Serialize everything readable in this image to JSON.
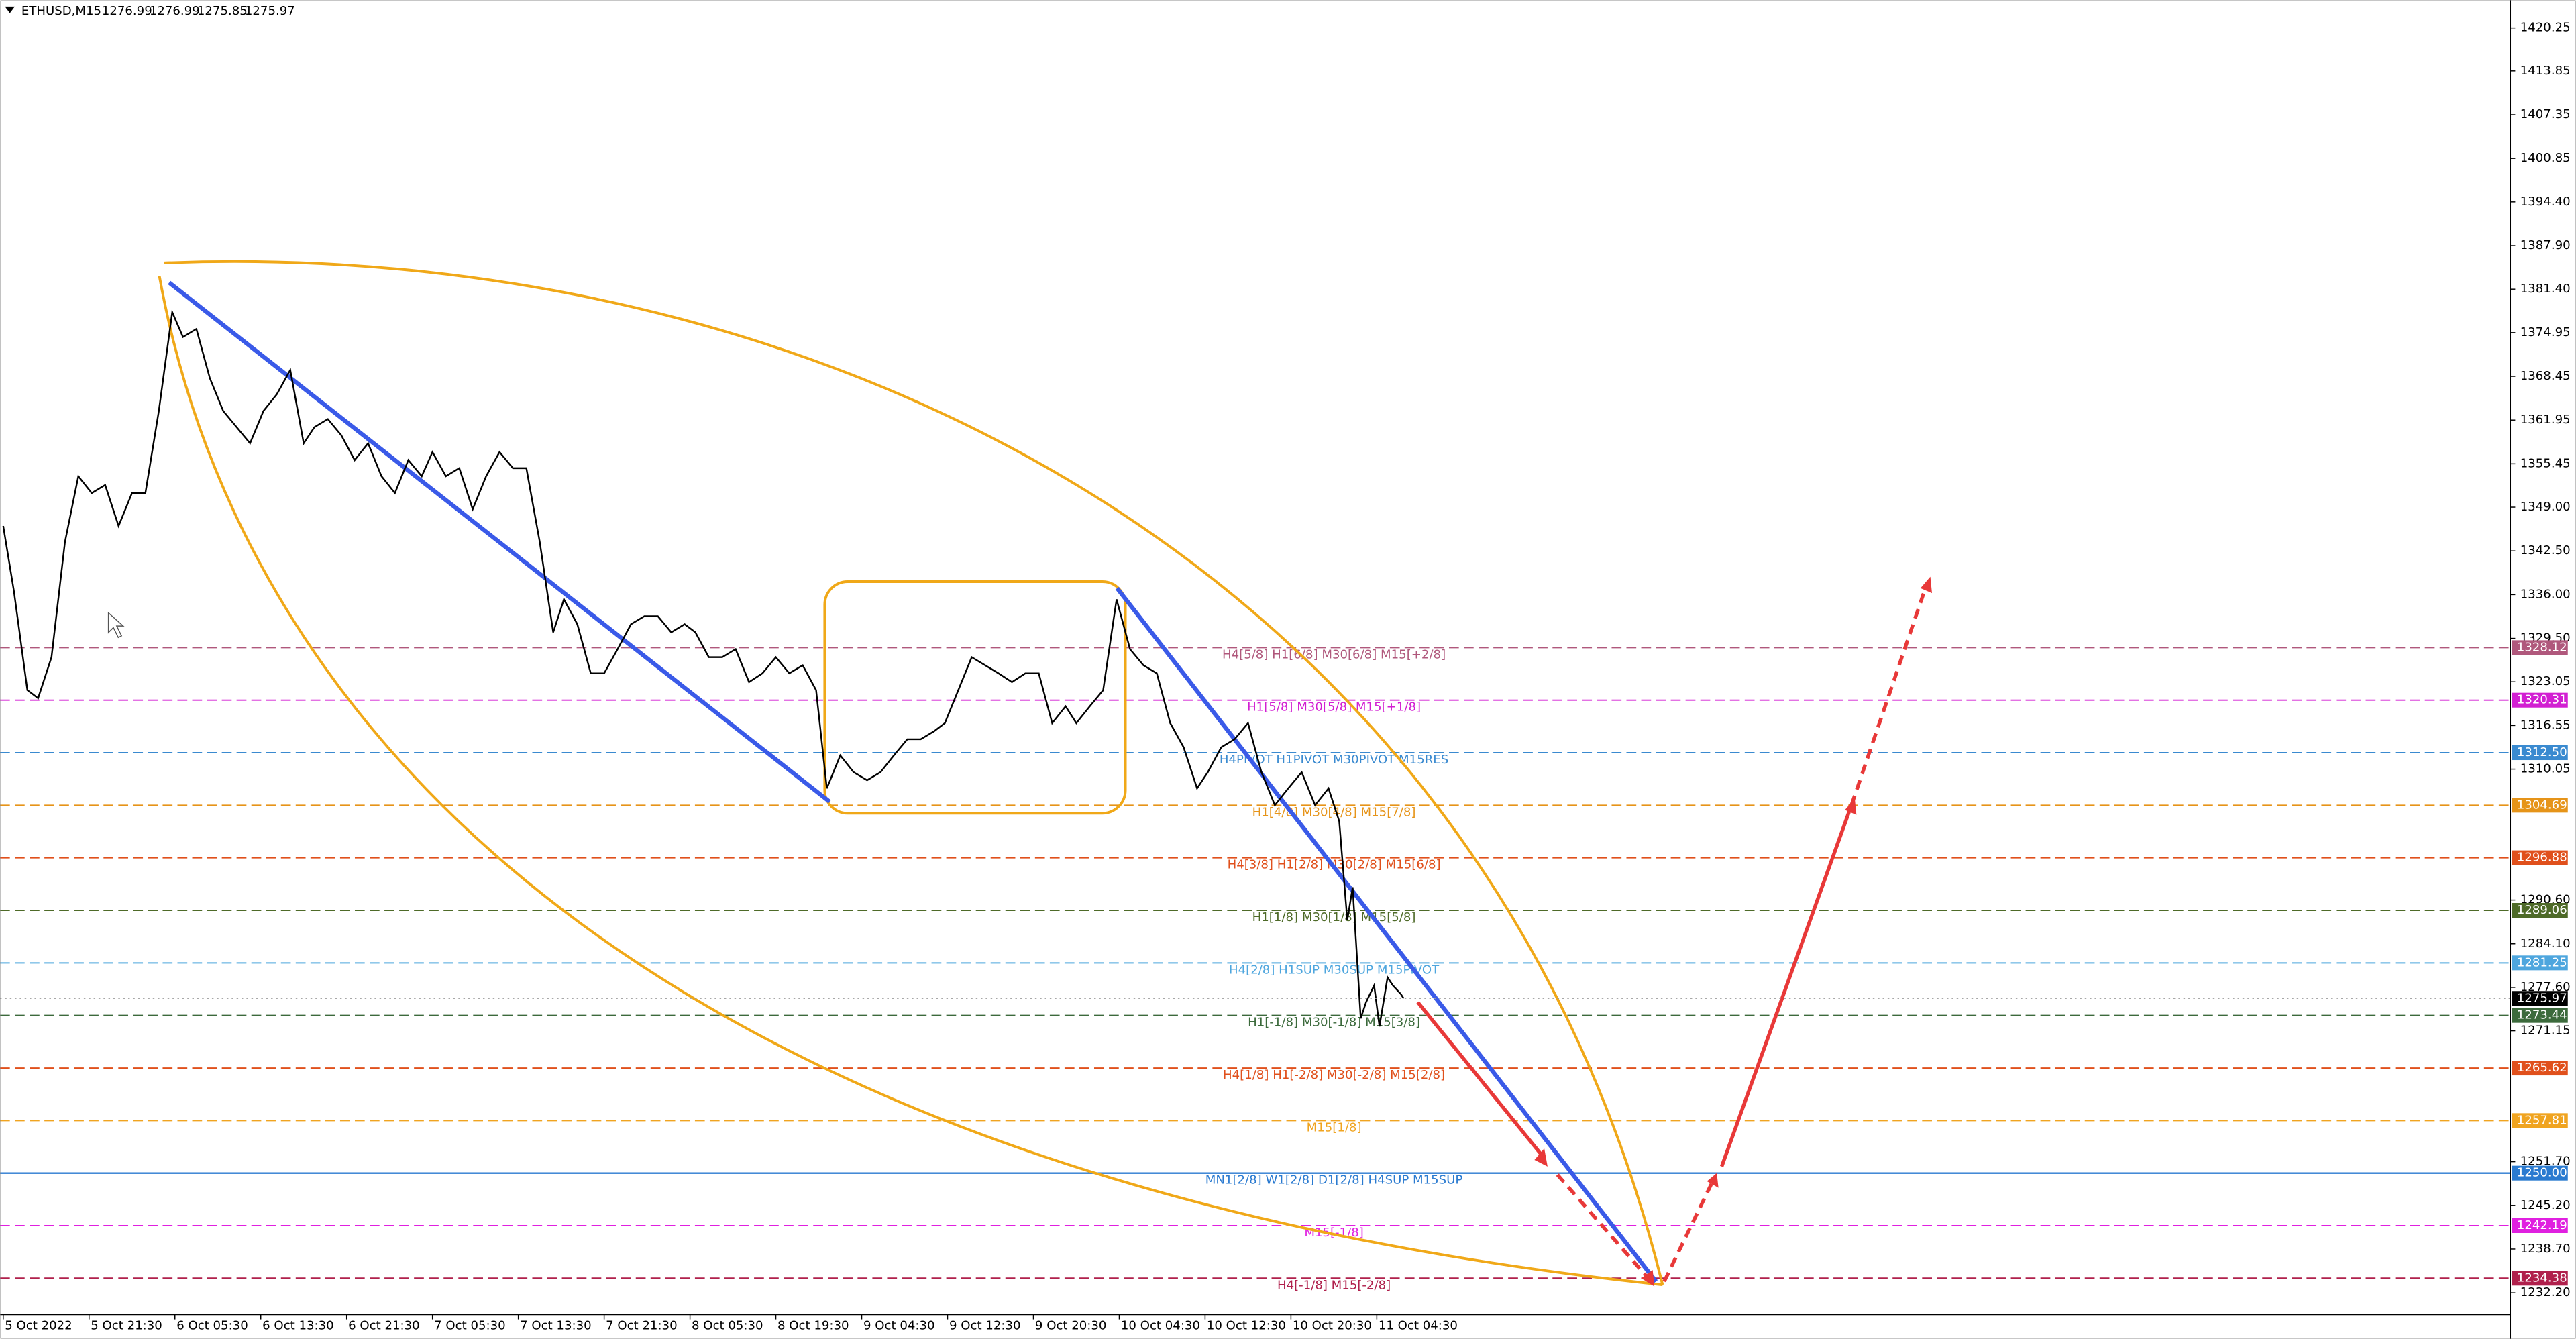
{
  "chart_data": {
    "type": "line",
    "symbol": "ETHUSD,M15",
    "ohlc": [
      1276.99,
      1276.99,
      1275.85,
      1275.97
    ],
    "color": "#000000",
    "x": [
      0,
      4,
      9,
      13,
      18,
      23,
      28,
      33,
      38,
      43,
      48,
      53,
      58,
      63,
      67,
      72,
      77,
      82,
      87,
      92,
      97,
      102,
      107,
      112,
      116,
      121,
      126,
      131,
      136,
      141,
      146,
      151,
      156,
      160,
      165,
      170,
      175,
      180,
      185,
      190,
      195,
      200,
      205,
      209,
      214,
      219,
      224,
      229,
      234,
      239,
      244,
      249,
      254,
      258,
      263,
      268,
      273,
      278,
      283,
      288,
      293,
      298,
      303,
      307,
      312,
      317,
      322,
      327,
      332,
      337,
      342,
      347,
      351,
      356,
      361,
      366,
      371,
      376,
      381,
      386,
      391,
      396,
      400,
      405,
      410,
      415,
      420,
      425,
      430,
      435,
      440,
      445,
      449,
      454,
      459,
      464,
      469,
      474,
      479,
      484,
      489,
      494,
      498,
      501,
      503,
      506,
      508,
      511,
      513,
      516,
      518,
      521,
      522
    ],
    "values": [
      1346.2,
      1336.5,
      1321.8,
      1320.6,
      1326.7,
      1343.8,
      1353.6,
      1351.1,
      1352.3,
      1346.2,
      1351.1,
      1351.1,
      1363.3,
      1378.0,
      1374.3,
      1375.5,
      1368.2,
      1363.3,
      1360.9,
      1358.5,
      1363.3,
      1365.8,
      1369.4,
      1358.5,
      1360.9,
      1362.1,
      1359.7,
      1356.0,
      1358.5,
      1353.6,
      1351.1,
      1356.0,
      1353.6,
      1357.2,
      1353.6,
      1354.8,
      1348.7,
      1353.6,
      1357.2,
      1354.8,
      1354.8,
      1343.8,
      1330.4,
      1335.3,
      1331.6,
      1324.3,
      1324.3,
      1327.9,
      1331.6,
      1332.8,
      1332.8,
      1330.4,
      1331.6,
      1330.4,
      1326.7,
      1326.7,
      1327.9,
      1323.0,
      1324.3,
      1326.7,
      1324.3,
      1325.5,
      1321.8,
      1307.2,
      1312.1,
      1309.6,
      1308.4,
      1309.6,
      1312.1,
      1314.5,
      1314.5,
      1315.7,
      1316.9,
      1321.8,
      1326.7,
      1325.5,
      1324.3,
      1323.0,
      1324.3,
      1324.3,
      1316.9,
      1319.4,
      1316.9,
      1319.4,
      1321.8,
      1335.3,
      1327.9,
      1325.5,
      1324.3,
      1316.9,
      1313.3,
      1307.2,
      1309.6,
      1313.3,
      1314.5,
      1316.9,
      1309.6,
      1304.7,
      1307.2,
      1309.6,
      1304.7,
      1307.2,
      1302.3,
      1287.6,
      1292.5,
      1273.0,
      1275.4,
      1277.9,
      1271.8,
      1279.1,
      1277.9,
      1276.6,
      1275.97
    ],
    "last_price": 1275.97,
    "xlim": [
      -1.2,
      934.5
    ],
    "ylim": [
      1229.0,
      1424.4
    ],
    "xticks": [
      {
        "value": 0,
        "label": "5 Oct 2022"
      },
      {
        "value": 32,
        "label": "5 Oct 21:30"
      },
      {
        "value": 64,
        "label": "6 Oct 05:30"
      },
      {
        "value": 96,
        "label": "6 Oct 13:30"
      },
      {
        "value": 128,
        "label": "6 Oct 21:30"
      },
      {
        "value": 160,
        "label": "7 Oct 05:30"
      },
      {
        "value": 192,
        "label": "7 Oct 13:30"
      },
      {
        "value": 224,
        "label": "7 Oct 21:30"
      },
      {
        "value": 256,
        "label": "8 Oct 05:30"
      },
      {
        "value": 288,
        "label": "8 Oct 19:30"
      },
      {
        "value": 320,
        "label": "9 Oct 04:30"
      },
      {
        "value": 352,
        "label": "9 Oct 12:30"
      },
      {
        "value": 384,
        "label": "9 Oct 20:30"
      },
      {
        "value": 416,
        "label": "10 Oct 04:30"
      },
      {
        "value": 448,
        "label": "10 Oct 12:30"
      },
      {
        "value": 480,
        "label": "10 Oct 20:30"
      },
      {
        "value": 512,
        "label": "11 Oct 04:30"
      }
    ],
    "yticks": [
      1420.25,
      1413.85,
      1407.35,
      1400.85,
      {
        "value": 1394.4,
        "label": "1394.40"
      },
      {
        "value": 1387.9,
        "label": "1387.90"
      },
      {
        "value": 1381.4,
        "label": "1381.40"
      },
      1374.95,
      1368.45,
      1361.95,
      1355.45,
      {
        "value": 1349,
        "label": "1349.00"
      },
      {
        "value": 1342.5,
        "label": "1342.50"
      },
      {
        "value": 1336,
        "label": "1336.00"
      },
      {
        "value": 1329.5,
        "label": "1329.50"
      },
      1323.05,
      1316.55,
      1310.05,
      {
        "value": 1290.6,
        "label": "1290.60"
      },
      {
        "value": 1284.1,
        "label": "1284.10"
      },
      {
        "value": 1277.6,
        "label": "1277.60"
      },
      1271.15,
      {
        "value": 1251.7,
        "label": "1251.70"
      },
      {
        "value": 1245.2,
        "label": "1245.20"
      },
      {
        "value": 1238.7,
        "label": "1238.70"
      },
      {
        "value": 1232.2,
        "label": "1232.20"
      }
    ],
    "levels": {
      "values": [
        1328.12,
        1320.31,
        1312.5,
        1304.69,
        1296.88,
        1289.06,
        1281.25,
        1273.44,
        1265.62,
        1257.81,
        1250,
        1242.19,
        1234.38
      ],
      "value_labels": [
        "1328.12",
        "1320.31",
        "1312.50",
        "1304.69",
        "1296.88",
        "1289.06",
        "1281.25",
        "1273.44",
        "1265.62",
        "1257.81",
        "1250.00",
        "1242.19",
        "1234.38"
      ],
      "texts": [
        "H4[5/8] H1[6/8] M30[6/8] M15[+2/8]",
        "H1[5/8] M30[5/8] M15[+1/8]",
        "H4PIVOT H1PIVOT M30PIVOT M15RES",
        "H1[4/8] M30[4/8] M15[7/8]",
        "H4[3/8] H1[2/8] M30[2/8] M15[6/8]",
        "H1[1/8] M30[1/8] M15[5/8]",
        "H4[2/8] H1SUP M30SUP M15PIVOT",
        "H1[-1/8] M30[-1/8] M15[3/8]",
        "H4[1/8] H1[-2/8] M30[-2/8] M15[2/8]",
        "M15[1/8]",
        "MN1[2/8] W1[2/8] D1[2/8] H4SUP M15SUP",
        "M15[-1/8]",
        "H4[-1/8] M15[-2/8]"
      ],
      "colors": [
        "#b0587c",
        "#d21fd2",
        "#3a8ad0",
        "#e69419",
        "#e0501c",
        "#4e6a28",
        "#4ea6de",
        "#3c6a3c",
        "#e0501c",
        "#f0a420",
        "#2a7ad0",
        "#e020e0",
        "#b0204c"
      ],
      "solid": [
        false,
        false,
        false,
        false,
        false,
        false,
        false,
        false,
        false,
        false,
        true,
        false,
        false
      ]
    }
  }
}
